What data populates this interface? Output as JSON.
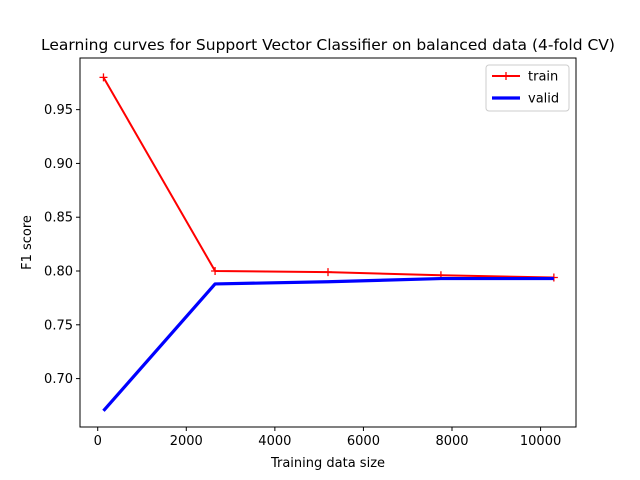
{
  "chart_data": {
    "type": "line",
    "title": "Learning curves for Support Vector Classifier on balanced data (4-fold CV)",
    "xlabel": "Training data size",
    "ylabel": "F1 score",
    "xlim": [
      -400,
      10800
    ],
    "ylim": [
      0.655,
      0.998
    ],
    "xticks": [
      0,
      2000,
      4000,
      6000,
      8000,
      10000
    ],
    "yticks": [
      0.7,
      0.75,
      0.8,
      0.85,
      0.9,
      0.95
    ],
    "xtick_labels": [
      "0",
      "2000",
      "4000",
      "6000",
      "8000",
      "10000"
    ],
    "ytick_labels": [
      "0.70",
      "0.75",
      "0.80",
      "0.85",
      "0.90",
      "0.95"
    ],
    "legend_position": "upper right",
    "series": [
      {
        "name": "train",
        "color": "#ff0000",
        "marker": "plus",
        "x": [
          130,
          2650,
          5200,
          7750,
          10300
        ],
        "y": [
          0.98,
          0.8,
          0.799,
          0.796,
          0.794
        ]
      },
      {
        "name": "valid",
        "color": "#0000ff",
        "marker": "none",
        "x": [
          130,
          2650,
          5200,
          7750,
          10300
        ],
        "y": [
          0.67,
          0.788,
          0.79,
          0.793,
          0.793
        ]
      }
    ]
  }
}
